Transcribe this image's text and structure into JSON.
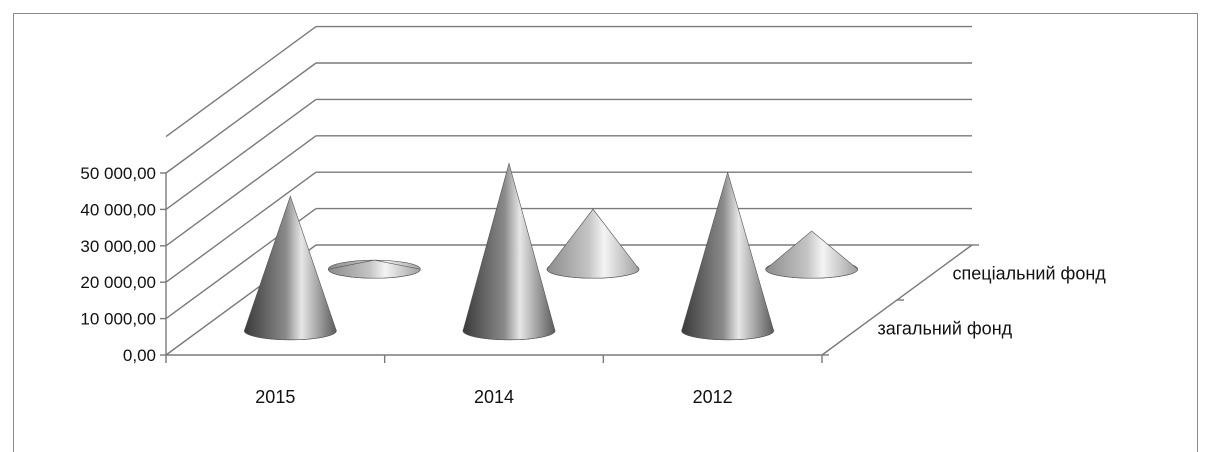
{
  "chart_data": {
    "type": "bar",
    "shape": "3d-cone",
    "categories": [
      "2015",
      "2014",
      "2012"
    ],
    "series": [
      {
        "name": "загальний фонд",
        "values": [
          37000,
          46000,
          43500
        ],
        "color": "#6e6e6e"
      },
      {
        "name": "спеціальний фонд",
        "values": [
          2500,
          16500,
          10500
        ],
        "color": "#c8c8c8"
      }
    ],
    "y_ticks": [
      "0,00",
      "10 000,00",
      "20 000,00",
      "30 000,00",
      "40 000,00",
      "50 000,00"
    ],
    "ylim": [
      0,
      50000
    ],
    "grid": true,
    "legend": "depth-axis-right",
    "title": "",
    "xlabel": "",
    "ylabel": ""
  }
}
